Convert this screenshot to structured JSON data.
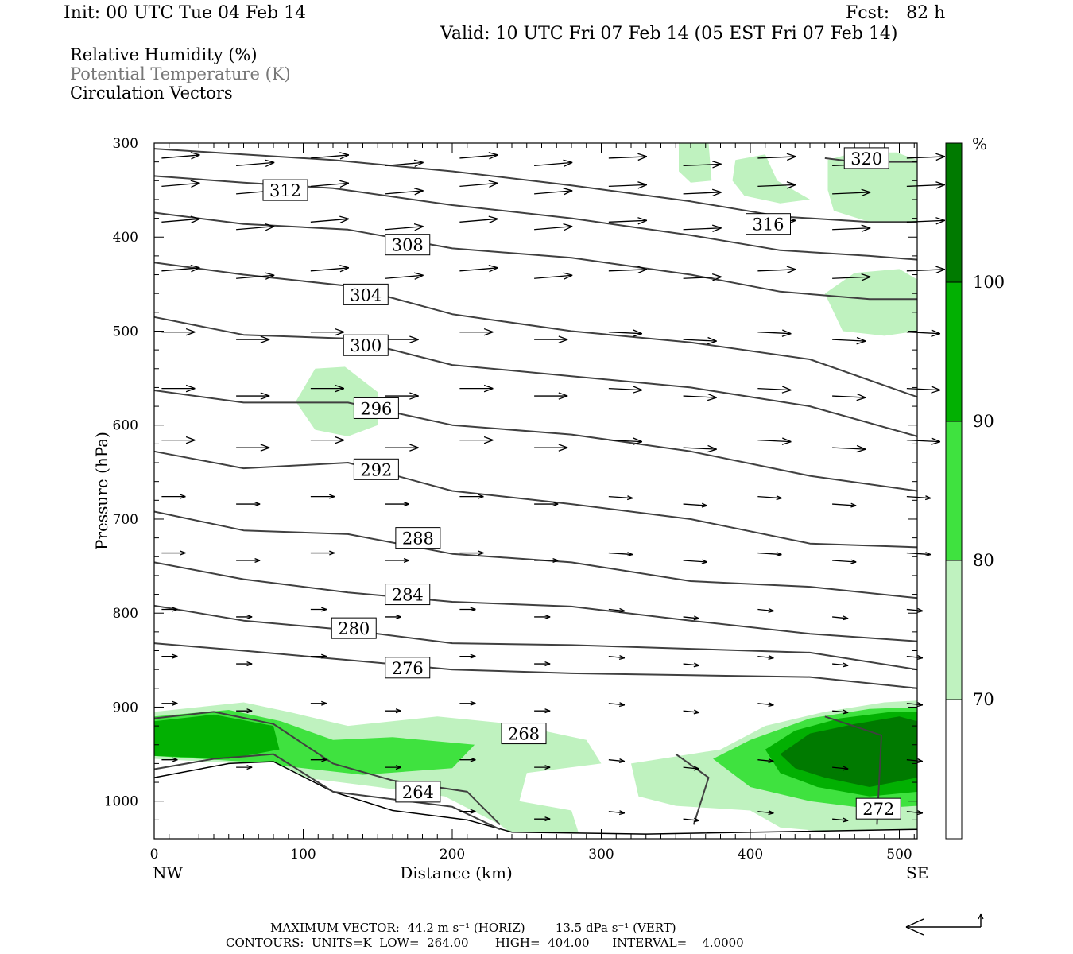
{
  "header": {
    "init": "Init: 00 UTC Tue 04 Feb 14",
    "fcst": "Fcst:   82 h",
    "valid": "Valid: 10 UTC Fri 07 Feb 14 (05 EST Fri 07 Feb 14)"
  },
  "legend_lines": {
    "rh": "Relative Humidity (%)",
    "theta": "Potential Temperature (K)",
    "vectors": "Circulation Vectors"
  },
  "footer": {
    "max_vector_line": "MAXIMUM VECTOR:  44.2 m s⁻¹ (HORIZ)        13.5 dPa s⁻¹ (VERT)",
    "contours_line": "CONTOURS:  UNITS=K  LOW=  264.00       HIGH=  404.00      INTERVAL=    4.0000"
  },
  "colors": {
    "rh_70": "#bff2bf",
    "rh_80": "#3fe23f",
    "rh_90": "#02b002",
    "rh_100": "#007a00",
    "contour": "#404040",
    "vector": "#000000"
  },
  "chart_data": {
    "type": "cross-section",
    "xlabel": "Distance (km)",
    "ylabel": "Pressure (hPa)",
    "xlim": [
      0,
      512
    ],
    "ylim": [
      1040,
      300
    ],
    "x_ticks": [
      0,
      100,
      200,
      300,
      400,
      500
    ],
    "y_ticks": [
      300,
      400,
      500,
      600,
      700,
      800,
      900,
      1000
    ],
    "x_end_labels": {
      "left": "NW",
      "right": "SE"
    },
    "colorbar": {
      "unit": "%",
      "levels": [
        70,
        80,
        90,
        100
      ],
      "colors": [
        "#bff2bf",
        "#3fe23f",
        "#02b002",
        "#007a00"
      ]
    },
    "theta_contours": [
      {
        "label": "320",
        "points": [
          [
            450,
            316
          ],
          [
            470,
            320
          ],
          [
            512,
            320
          ]
        ],
        "label_at": [
          478,
          316
        ]
      },
      {
        "label": "316",
        "points": [
          [
            0,
            306
          ],
          [
            60,
            312
          ],
          [
            120,
            318
          ],
          [
            200,
            330
          ],
          [
            280,
            345
          ],
          [
            360,
            362
          ],
          [
            420,
            378
          ],
          [
            480,
            384
          ],
          [
            512,
            384
          ]
        ],
        "label_at": [
          412,
          386
        ]
      },
      {
        "label": "312",
        "points": [
          [
            0,
            335
          ],
          [
            60,
            342
          ],
          [
            120,
            348
          ],
          [
            200,
            366
          ],
          [
            280,
            380
          ],
          [
            360,
            398
          ],
          [
            420,
            414
          ],
          [
            480,
            420
          ],
          [
            512,
            424
          ]
        ],
        "label_at": [
          88,
          350
        ]
      },
      {
        "label": "308",
        "points": [
          [
            0,
            374
          ],
          [
            60,
            386
          ],
          [
            130,
            392
          ],
          [
            200,
            412
          ],
          [
            280,
            422
          ],
          [
            360,
            440
          ],
          [
            420,
            458
          ],
          [
            480,
            466
          ],
          [
            512,
            466
          ]
        ],
        "label_at": [
          170,
          408
        ]
      },
      {
        "label": "304",
        "points": [
          [
            0,
            427
          ],
          [
            60,
            440
          ],
          [
            130,
            452
          ],
          [
            200,
            482
          ],
          [
            280,
            500
          ],
          [
            360,
            512
          ],
          [
            440,
            530
          ],
          [
            512,
            570
          ]
        ],
        "label_at": [
          142,
          461
        ]
      },
      {
        "label": "300",
        "points": [
          [
            0,
            485
          ],
          [
            60,
            504
          ],
          [
            130,
            508
          ],
          [
            200,
            536
          ],
          [
            280,
            548
          ],
          [
            360,
            560
          ],
          [
            440,
            580
          ],
          [
            512,
            612
          ]
        ],
        "label_at": [
          142,
          515
        ]
      },
      {
        "label": "296",
        "points": [
          [
            0,
            563
          ],
          [
            60,
            576
          ],
          [
            130,
            576
          ],
          [
            200,
            600
          ],
          [
            280,
            610
          ],
          [
            360,
            628
          ],
          [
            440,
            654
          ],
          [
            512,
            670
          ]
        ],
        "label_at": [
          149,
          582
        ]
      },
      {
        "label": "292",
        "points": [
          [
            0,
            628
          ],
          [
            60,
            646
          ],
          [
            130,
            640
          ],
          [
            200,
            670
          ],
          [
            280,
            684
          ],
          [
            360,
            700
          ],
          [
            440,
            726
          ],
          [
            512,
            730
          ]
        ],
        "label_at": [
          149,
          647
        ]
      },
      {
        "label": "288",
        "points": [
          [
            0,
            692
          ],
          [
            60,
            712
          ],
          [
            130,
            716
          ],
          [
            200,
            737
          ],
          [
            280,
            746
          ],
          [
            360,
            766
          ],
          [
            440,
            772
          ],
          [
            512,
            784
          ]
        ],
        "label_at": [
          177,
          720
        ]
      },
      {
        "label": "284",
        "points": [
          [
            0,
            746
          ],
          [
            60,
            764
          ],
          [
            130,
            778
          ],
          [
            200,
            788
          ],
          [
            280,
            793
          ],
          [
            360,
            808
          ],
          [
            440,
            822
          ],
          [
            512,
            830
          ]
        ],
        "label_at": [
          170,
          780
        ]
      },
      {
        "label": "280",
        "points": [
          [
            0,
            792
          ],
          [
            60,
            808
          ],
          [
            130,
            818
          ],
          [
            200,
            832
          ],
          [
            280,
            834
          ],
          [
            360,
            838
          ],
          [
            440,
            842
          ],
          [
            512,
            860
          ]
        ],
        "label_at": [
          134,
          816
        ]
      },
      {
        "label": "276",
        "points": [
          [
            0,
            832
          ],
          [
            60,
            840
          ],
          [
            130,
            850
          ],
          [
            200,
            860
          ],
          [
            280,
            864
          ],
          [
            360,
            866
          ],
          [
            440,
            868
          ],
          [
            512,
            880
          ]
        ],
        "label_at": [
          170,
          858
        ]
      },
      {
        "label": "268",
        "points": [
          [
            0,
            912
          ],
          [
            40,
            905
          ],
          [
            80,
            918
          ],
          [
            120,
            960
          ],
          [
            160,
            978
          ],
          [
            210,
            990
          ],
          [
            232,
            1025
          ]
        ],
        "label_at": [
          248,
          928
        ]
      },
      {
        "label": "264",
        "points": [
          [
            0,
            966
          ],
          [
            40,
            955
          ],
          [
            80,
            950
          ],
          [
            120,
            990
          ],
          [
            200,
            1006
          ],
          [
            232,
            1030
          ]
        ],
        "label_at": [
          177,
          990
        ]
      },
      {
        "label": "272",
        "points": [
          [
            362,
            1025
          ],
          [
            372,
            975
          ],
          [
            350,
            950
          ]
        ],
        "label_at": null
      },
      {
        "label": "272",
        "points": [
          [
            485,
            1025
          ],
          [
            488,
            930
          ],
          [
            450,
            910
          ]
        ],
        "label_at": [
          486,
          1008
        ]
      }
    ]
  }
}
